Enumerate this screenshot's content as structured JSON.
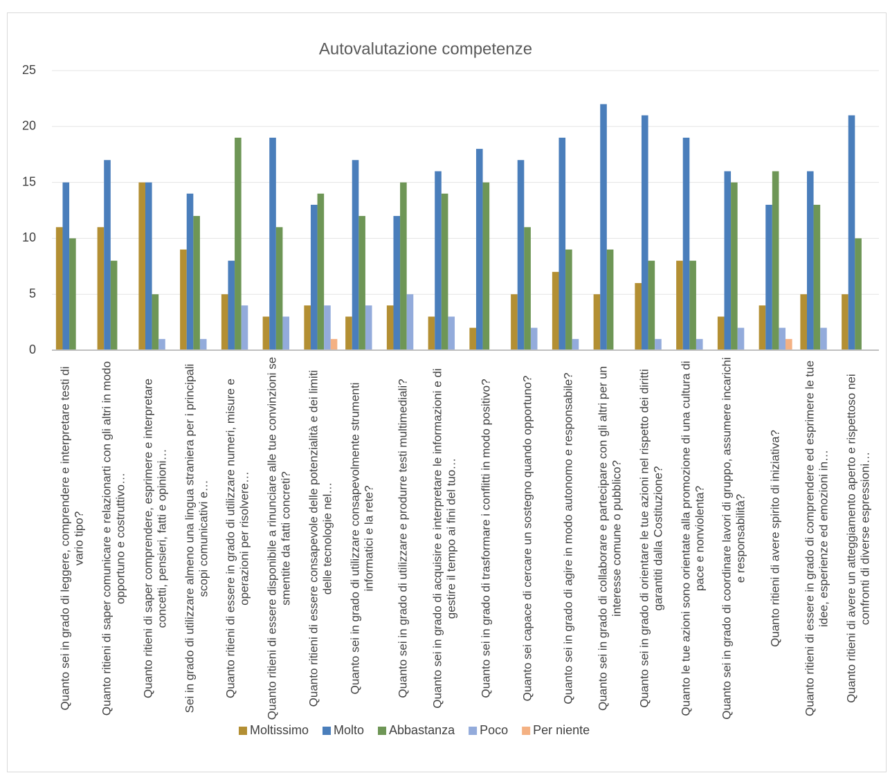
{
  "chart_data": {
    "type": "bar",
    "title": "Autovalutazione competenze",
    "categories": [
      "Quanto sei in grado di leggere, comprendere e interpretare testi di vario tipo?",
      "Quanto ritieni di saper comunicare e relazionarti con gli altri in modo opportuno e costruttivo…",
      "Quanto ritieni di saper comprendere, esprimere e interpretare concetti, pensieri, fatti e opinioni…",
      "Sei in grado di utilizzare almeno una lingua straniera per i principali scopi comunicativi e…",
      "Quanto ritieni di essere in grado di utilizzare numeri, misure e operazioni per risolvere…",
      "Quanto ritieni di essere disponibile a rinunciare alle tue convinzioni se smentite da fatti concreti?",
      "Quanto ritieni di essere consapevole delle potenzialità e dei limiti delle tecnologie nel…",
      "Quanto sei in grado di utilizzare consapevolmente strumenti informatici e la rete?",
      "Quanto sei in grado di utilizzare e produrre testi multimediali?",
      "Quanto sei in grado di acquisire e interpretare le informazioni e di gestire il tempo ai fini del tuo…",
      "Quanto sei in grado di trasformare i conflitti in modo positivo?",
      "Quanto sei capace di cercare un sostegno quando opportuno?",
      "Quanto sei in grado di agire in modo autonomo e responsabile?",
      "Quanto sei in grado di collaborare e partecipare con gli altri per un interesse comune o pubblico?",
      "Quanto sei in grado di orientare le tue azioni nel rispetto dei diritti garantiti dalla Costituzione?",
      "Quanto le tue azioni sono orientate alla promozione di una cultura di pace e nonviolenta?",
      "Quanto sei in grado di coordinare lavori di gruppo, assumere incarichi e responsabilità?",
      "Quanto ritieni di avere spirito di iniziativa?",
      "Quanto ritieni di essere in grado di comprendere ed esprimere le tue idee, esperienze ed emozioni in…",
      "Quanto ritieni di avere un atteggiamento aperto e rispettoso nei confronti di diverse espressioni…"
    ],
    "series": [
      {
        "name": "Moltissimo",
        "color": "#b38f33",
        "values": [
          11,
          11,
          15,
          9,
          5,
          3,
          4,
          3,
          4,
          3,
          2,
          5,
          7,
          5,
          6,
          8,
          3,
          4,
          5,
          5
        ]
      },
      {
        "name": "Molto",
        "color": "#4a7ebb",
        "values": [
          15,
          17,
          15,
          14,
          8,
          19,
          13,
          17,
          12,
          16,
          18,
          17,
          19,
          22,
          21,
          19,
          16,
          13,
          16,
          21
        ]
      },
      {
        "name": "Abbastanza",
        "color": "#6e9656",
        "values": [
          10,
          8,
          5,
          12,
          19,
          11,
          14,
          12,
          15,
          14,
          15,
          11,
          9,
          9,
          8,
          8,
          15,
          16,
          13,
          10
        ]
      },
      {
        "name": "Poco",
        "color": "#93abdb",
        "values": [
          0,
          0,
          1,
          1,
          4,
          3,
          4,
          4,
          5,
          3,
          0,
          2,
          1,
          0,
          1,
          1,
          2,
          2,
          2,
          0
        ]
      },
      {
        "name": "Per niente",
        "color": "#f4b183",
        "values": [
          0,
          0,
          0,
          0,
          0,
          0,
          1,
          0,
          0,
          0,
          0,
          0,
          0,
          0,
          0,
          0,
          0,
          1,
          0,
          0
        ]
      }
    ],
    "ylim": [
      0,
      25
    ],
    "yticks": [
      0,
      5,
      10,
      15,
      20,
      25
    ],
    "grid": true,
    "legend": "bottom"
  }
}
